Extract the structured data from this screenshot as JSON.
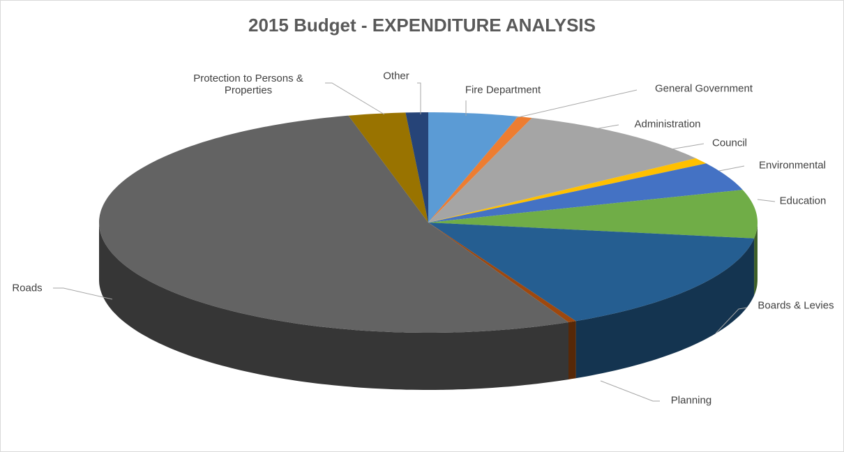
{
  "chart_data": {
    "type": "pie",
    "title": "2015 Budget - EXPENDITURE ANALYSIS",
    "categories": [
      "Fire Department",
      "General Government",
      "Administration",
      "Council",
      "Environmental",
      "Education",
      "Boards & Levies",
      "Planning",
      "Roads",
      "Protection to Persons & Properties",
      "Other"
    ],
    "values": [
      4.4,
      0.7,
      10,
      0.9,
      4.2,
      7.1,
      15.3,
      0.4,
      53.1,
      2.8,
      1.1
    ],
    "colors": [
      "#5b9bd5",
      "#ed7d31",
      "#a5a5a5",
      "#ffc000",
      "#4472c4",
      "#70ad47",
      "#255e91",
      "#9e480e",
      "#636363",
      "#997300",
      "#264478"
    ]
  }
}
